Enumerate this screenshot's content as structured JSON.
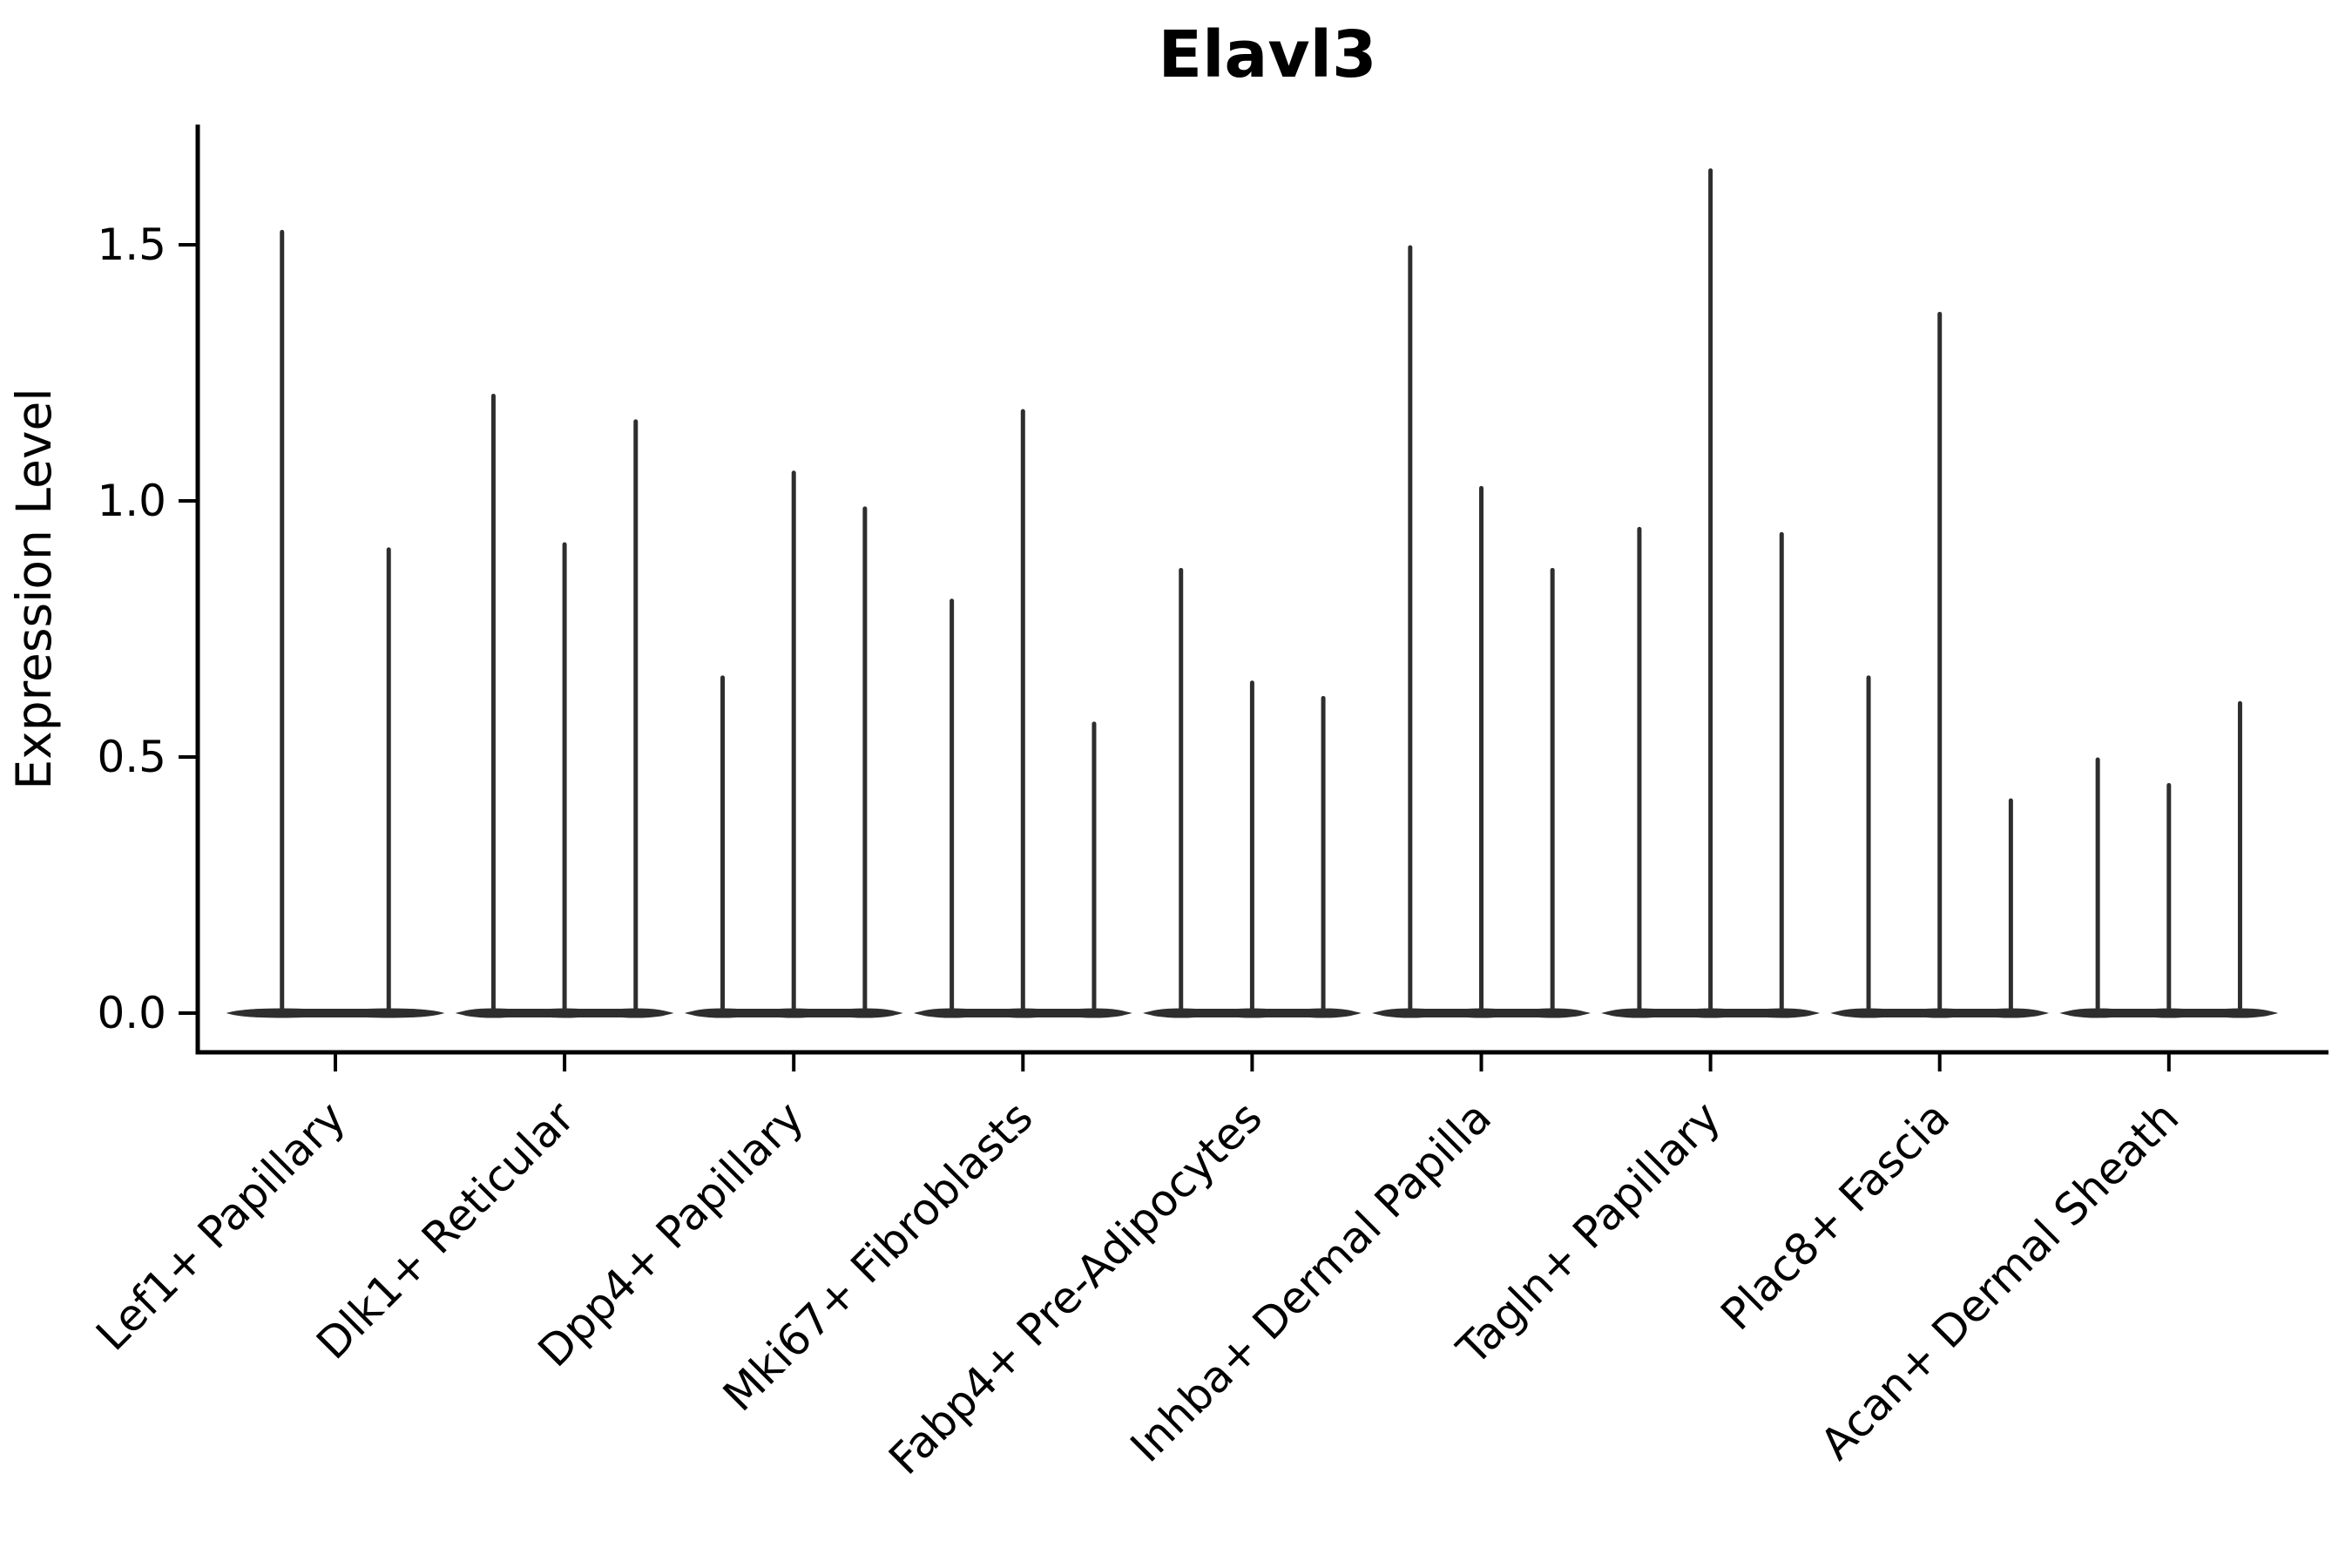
{
  "figure": {
    "title": "Elavl3",
    "y_axis": {
      "label": "Expression Level",
      "tick_labels": [
        "0.0",
        "0.5",
        "1.0",
        "1.5"
      ],
      "tick_values": [
        0.0,
        0.5,
        1.0,
        1.5
      ]
    },
    "x_axis": {
      "categories": [
        "Lef1+ Papillary",
        "Dlk1+ Reticular",
        "Dpp4+ Papillary",
        "Mki67+ Fibroblasts",
        "Fabp4+ Pre-Adipocytes",
        "Inhba+ Dermal Papilla",
        "Tagln+ Papillary",
        "Plac8+ Fascia",
        "Acan+ Dermal Sheath"
      ]
    },
    "colors": {
      "violin": "#2e2e2e",
      "axis": "#000000",
      "background": "#ffffff"
    }
  },
  "chart_data": {
    "type": "violin",
    "title": "Elavl3",
    "xlabel": "",
    "ylabel": "Expression Level",
    "ylim": [
      0,
      1.74
    ],
    "y_ticks": [
      0.0,
      0.5,
      1.0,
      1.5
    ],
    "y_tick_labels": [
      "0.0",
      "0.5",
      "1.0",
      "1.5"
    ],
    "x_tick_rotation": 45,
    "grid": false,
    "legend": "none",
    "categories": [
      "Lef1+ Papillary",
      "Dlk1+ Reticular",
      "Dpp4+ Papillary",
      "Mki67+ Fibroblasts",
      "Fabp4+ Pre-Adipocytes",
      "Inhba+ Dermal Papilla",
      "Tagln+ Papillary",
      "Plac8+ Fascia",
      "Acan+ Dermal Sheath"
    ],
    "violins": [
      {
        "category": "Lef1+ Papillary",
        "spike_max_values": [
          1.53,
          0.91
        ]
      },
      {
        "category": "Dlk1+ Reticular",
        "spike_max_values": [
          1.21,
          0.92,
          1.16
        ]
      },
      {
        "category": "Dpp4+ Papillary",
        "spike_max_values": [
          0.66,
          1.06,
          0.99
        ]
      },
      {
        "category": "Mki67+ Fibroblasts",
        "spike_max_values": [
          0.81,
          1.18,
          0.57
        ]
      },
      {
        "category": "Fabp4+ Pre-Adipocytes",
        "spike_max_values": [
          0.87,
          0.65,
          0.62
        ]
      },
      {
        "category": "Inhba+ Dermal Papilla",
        "spike_max_values": [
          1.5,
          1.03,
          0.87
        ]
      },
      {
        "category": "Tagln+ Papillary",
        "spike_max_values": [
          0.95,
          1.65,
          0.94
        ]
      },
      {
        "category": "Plac8+ Fascia",
        "spike_max_values": [
          0.66,
          1.37,
          0.42
        ]
      },
      {
        "category": "Acan+ Dermal Sheath",
        "spike_max_values": [
          0.5,
          0.45,
          0.61
        ]
      }
    ],
    "description": "Single-cell expression violin plot; each category shows 2-3 spike-like violins whose mass sits at 0 with a thin tail reaching the listed maximum expression value."
  }
}
